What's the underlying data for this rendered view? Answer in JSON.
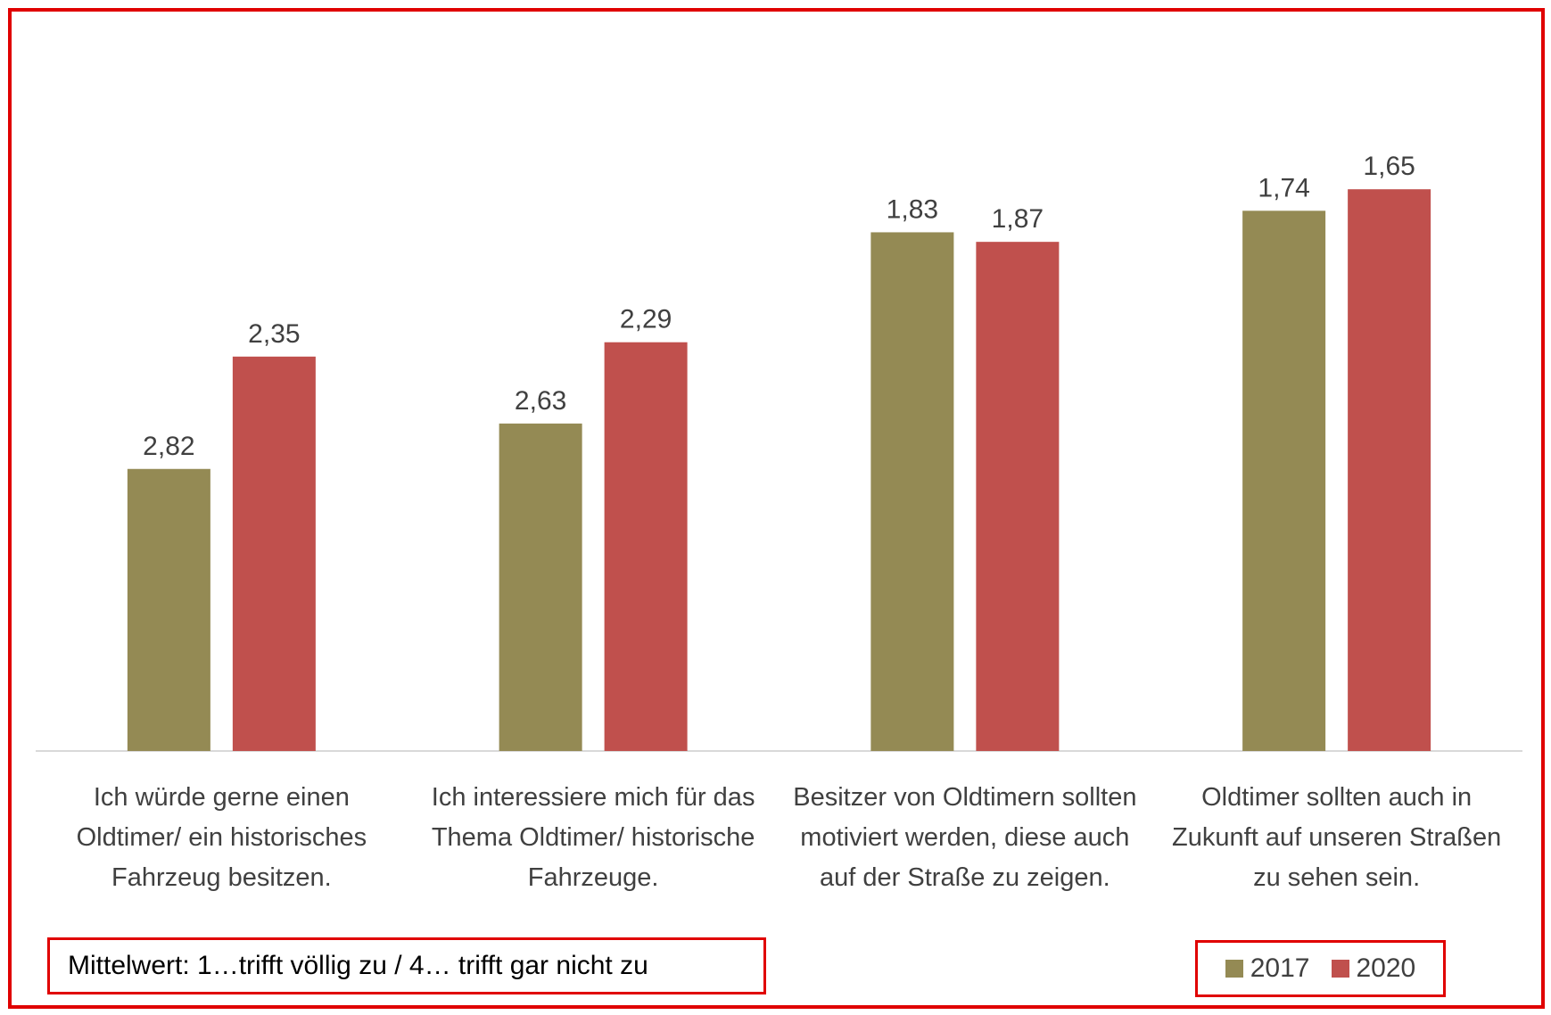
{
  "chart_data": {
    "type": "bar",
    "categories": [
      "Ich würde gerne einen Oldtimer/ ein historisches Fahrzeug besitzen.",
      "Ich interessiere mich für das Thema Oldtimer/ historische Fahrzeuge.",
      "Besitzer von Oldtimern sollten motiviert werden, diese auch auf der Straße zu zeigen.",
      "Oldtimer sollten auch in Zukunft auf unseren Straßen zu sehen sein."
    ],
    "series": [
      {
        "name": "2017",
        "color": "#948a54",
        "values": [
          2.82,
          2.63,
          1.83,
          1.74
        ],
        "value_labels": [
          "2,82",
          "2,63",
          "1,83",
          "1,74"
        ]
      },
      {
        "name": "2020",
        "color": "#c0504d",
        "values": [
          2.35,
          2.29,
          1.87,
          1.65
        ],
        "value_labels": [
          "2,35",
          "2,29",
          "1,87",
          "1,65"
        ]
      }
    ],
    "ylim": [
      4,
      1
    ],
    "annotation": "Mittelwert: 1…trifft völlig zu / 4… trifft gar nicht zu",
    "legend": "bottom-right"
  }
}
